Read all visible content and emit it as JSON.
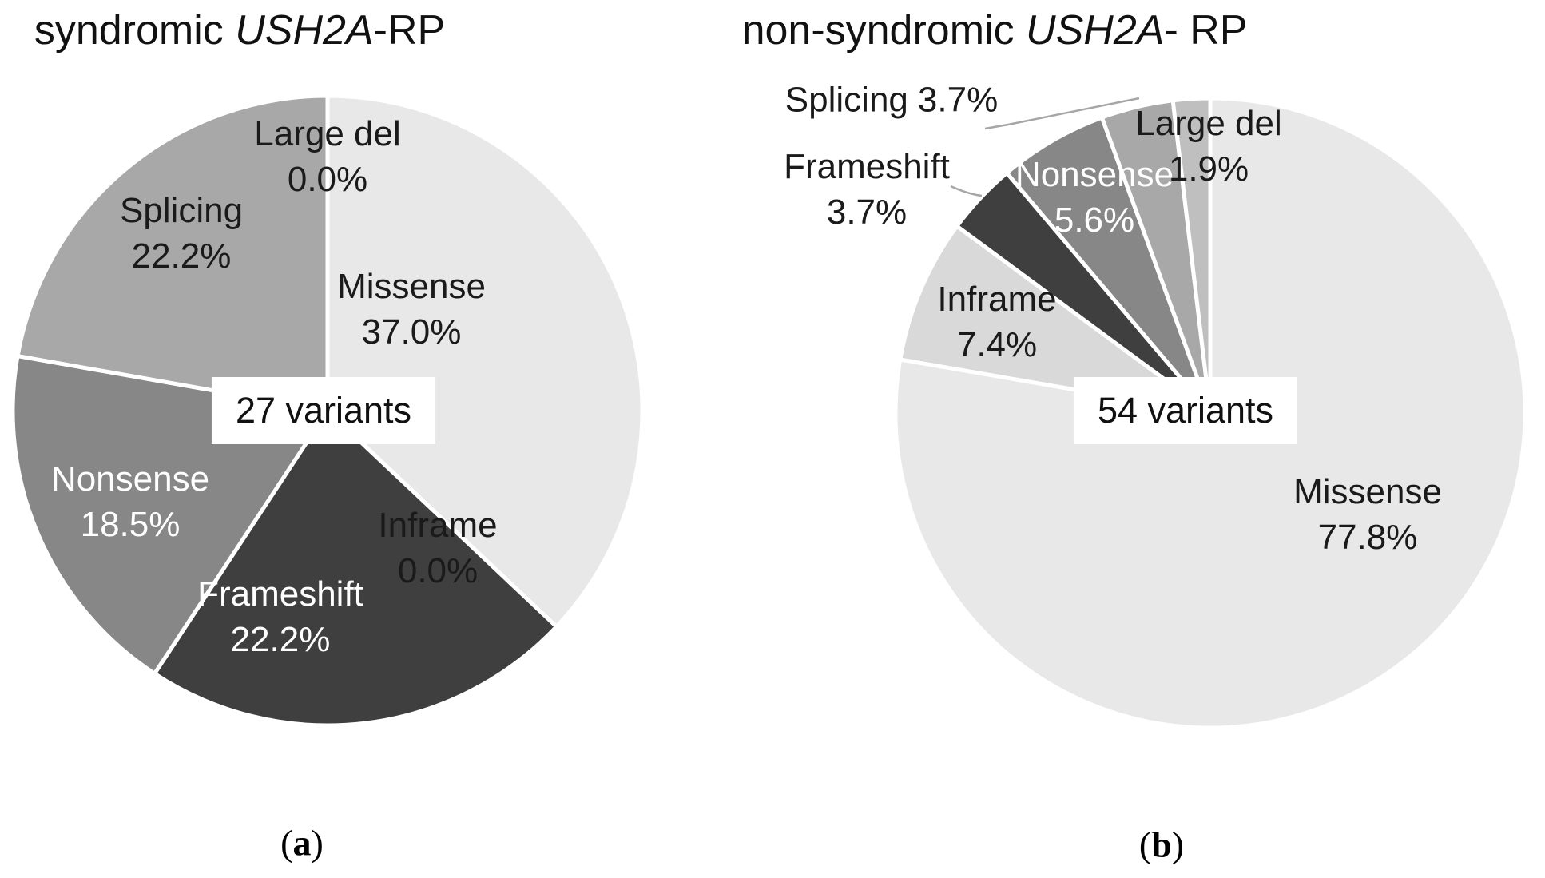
{
  "figure": {
    "background": "#ffffff",
    "description": "Two grayscale pie charts of USH2A variant types"
  },
  "chart_data": [
    {
      "type": "pie",
      "panel": "a",
      "title": "syndromic USH2A-RP",
      "title_parts": {
        "prefix": "syndromic ",
        "gene_italic": "USH2A",
        "suffix": "-RP"
      },
      "center_label": "27 variants",
      "start_angle_deg": 0,
      "direction": "clockwise",
      "unit": "%",
      "categories": [
        "Missense",
        "Inframe",
        "Frameshift",
        "Nonsense",
        "Splicing",
        "Large del"
      ],
      "values": [
        37.0,
        0.0,
        22.2,
        18.5,
        22.2,
        0.0
      ],
      "slices": [
        {
          "label": "Missense",
          "value": 37.0,
          "pct_label": "37.0%",
          "color": "#e8e8e8"
        },
        {
          "label": "Inframe",
          "value": 0.0,
          "pct_label": "0.0%",
          "color": "#d9d9d9"
        },
        {
          "label": "Frameshift",
          "value": 22.2,
          "pct_label": "22.2%",
          "color": "#3f3f3f"
        },
        {
          "label": "Nonsense",
          "value": 18.5,
          "pct_label": "18.5%",
          "color": "#878787"
        },
        {
          "label": "Splicing",
          "value": 22.2,
          "pct_label": "22.2%",
          "color": "#a8a8a8"
        },
        {
          "label": "Large del",
          "value": 0.0,
          "pct_label": "0.0%",
          "color": "#bfbfbf"
        }
      ]
    },
    {
      "type": "pie",
      "panel": "b",
      "title": "non-syndromic USH2A- RP",
      "title_parts": {
        "prefix": "non-syndromic ",
        "gene_italic": "USH2A",
        "suffix": "- RP"
      },
      "center_label": "54 variants",
      "start_angle_deg": 0,
      "direction": "clockwise",
      "unit": "%",
      "categories": [
        "Missense",
        "Inframe",
        "Frameshift",
        "Nonsense",
        "Splicing",
        "Large del"
      ],
      "values": [
        77.8,
        7.4,
        3.7,
        5.6,
        3.7,
        1.9
      ],
      "slices": [
        {
          "label": "Missense",
          "value": 77.8,
          "pct_label": "77.8%",
          "color": "#e8e8e8"
        },
        {
          "label": "Inframe",
          "value": 7.4,
          "pct_label": "7.4%",
          "color": "#d9d9d9"
        },
        {
          "label": "Frameshift",
          "value": 3.7,
          "pct_label": "3.7%",
          "color": "#3f3f3f"
        },
        {
          "label": "Nonsense",
          "value": 5.6,
          "pct_label": "5.6%",
          "color": "#878787"
        },
        {
          "label": "Splicing",
          "value": 3.7,
          "pct_label": "3.7%",
          "color": "#a8a8a8"
        },
        {
          "label": "Large del",
          "value": 1.9,
          "pct_label": "1.9%",
          "color": "#bfbfbf"
        }
      ]
    }
  ],
  "captions": {
    "a": {
      "open": "(",
      "letter": "a",
      "close": ")"
    },
    "b": {
      "open": "(",
      "letter": "b",
      "close": ")"
    }
  },
  "palette": {
    "missense": "#e8e8e8",
    "inframe": "#d9d9d9",
    "frameshift": "#3f3f3f",
    "nonsense": "#878787",
    "splicing": "#a8a8a8",
    "large_del": "#bfbfbf",
    "divider": "#ffffff",
    "leader_line": "#a6a6a6",
    "label_dark": "#1a1a1a",
    "label_light": "#ffffff"
  }
}
